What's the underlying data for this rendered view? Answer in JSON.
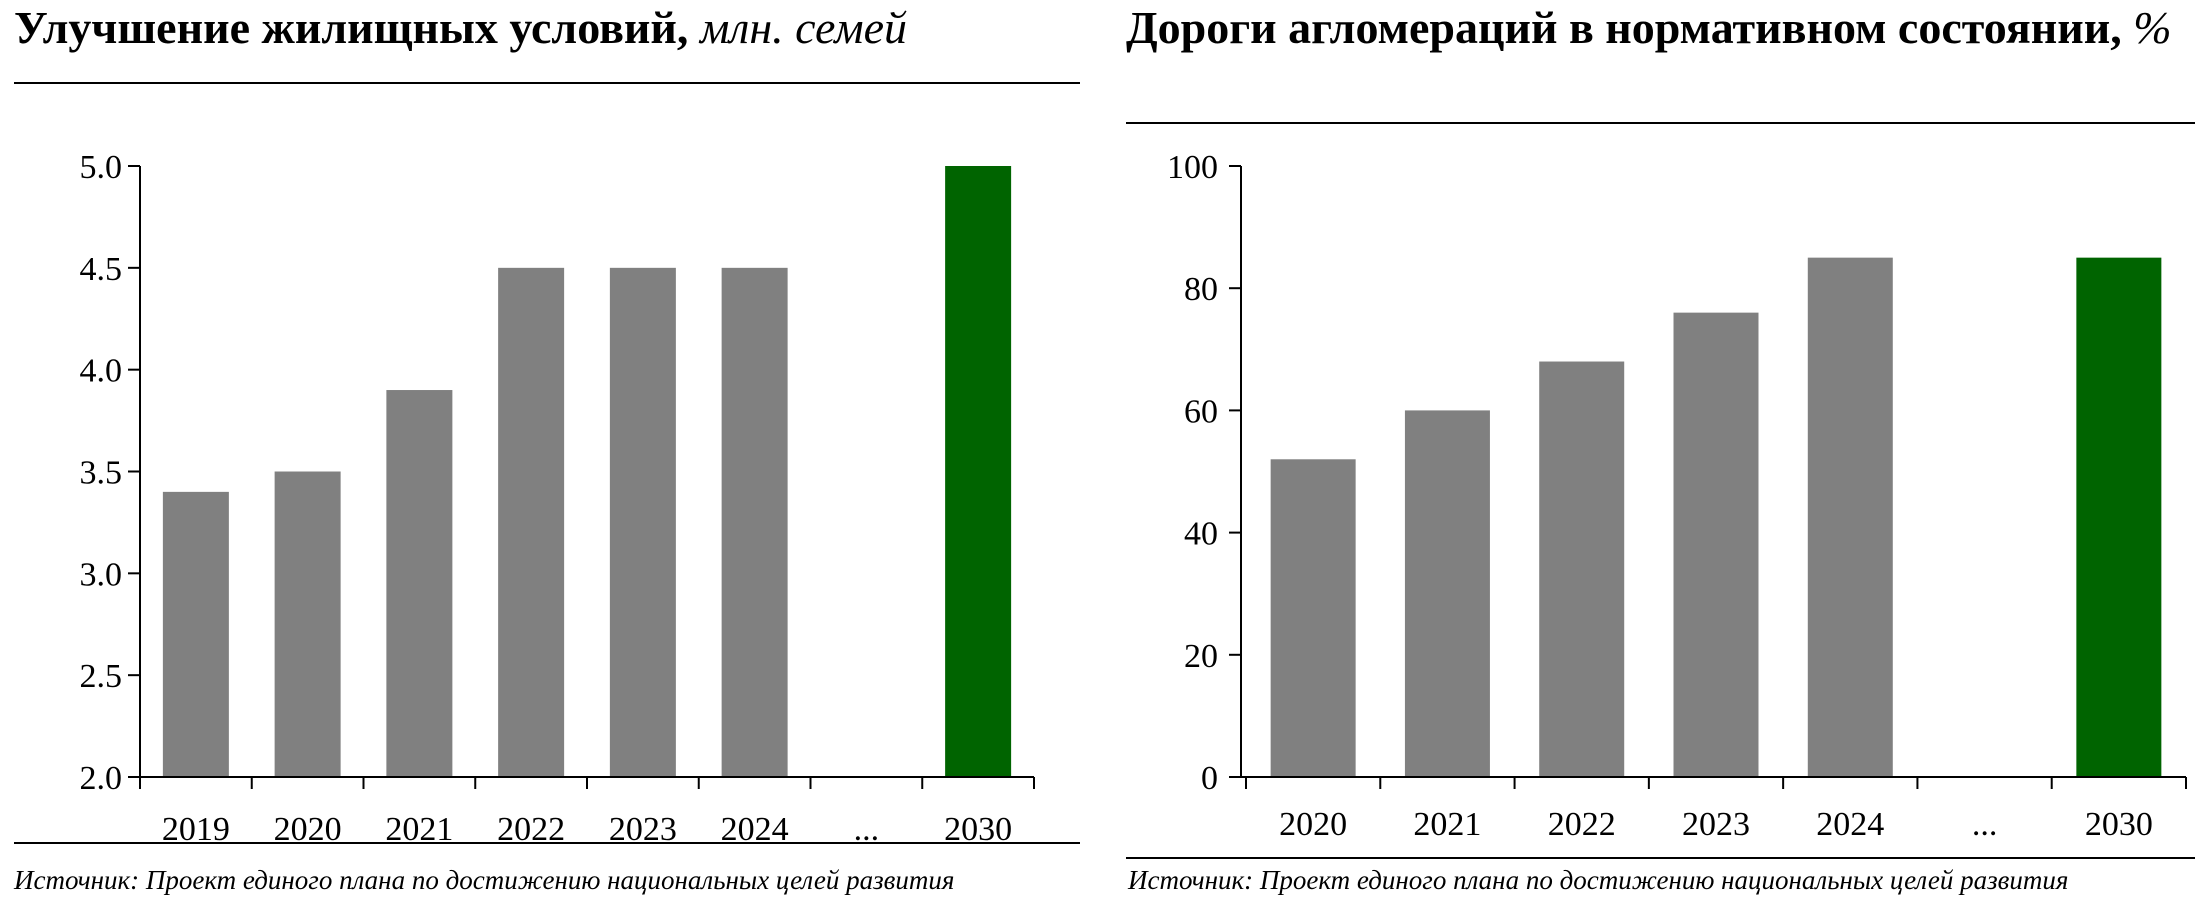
{
  "charts": [
    {
      "title": "Улучшение жилищных условий,",
      "unit": "млн. семей",
      "source": "Источник: Проект единого плана по достижению национальных целей развития"
    },
    {
      "title": "Дороги агломераций в нормативном состоянии,",
      "unit": "%",
      "source": "Источник: Проект единого плана по достижению национальных целей развития"
    }
  ],
  "colors": {
    "bar": "#808080",
    "target_bar": "#006400",
    "axis": "#000000"
  },
  "chart_data": [
    {
      "type": "bar",
      "title": "Улучшение жилищных условий, млн. семей",
      "categories": [
        "2019",
        "2020",
        "2021",
        "2022",
        "2023",
        "2024",
        "...",
        "2030"
      ],
      "values": [
        3.4,
        3.5,
        3.9,
        4.5,
        4.5,
        4.5,
        null,
        5.0
      ],
      "highlight": [
        "2030"
      ],
      "ylim": [
        2.0,
        5.0
      ],
      "yticks": [
        "2.0",
        "2.5",
        "3.0",
        "3.5",
        "4.0",
        "4.5",
        "5.0"
      ],
      "grid": false,
      "legend": "none"
    },
    {
      "type": "bar",
      "title": "Дороги агломераций в нормативном состоянии, %",
      "categories": [
        "2020",
        "2021",
        "2022",
        "2023",
        "2024",
        "...",
        "2030"
      ],
      "values": [
        52,
        60,
        68,
        76,
        85,
        null,
        85
      ],
      "highlight": [
        "2030"
      ],
      "ylim": [
        0,
        100
      ],
      "yticks": [
        "0",
        "20",
        "40",
        "60",
        "80",
        "100"
      ],
      "grid": false,
      "legend": "none"
    }
  ]
}
